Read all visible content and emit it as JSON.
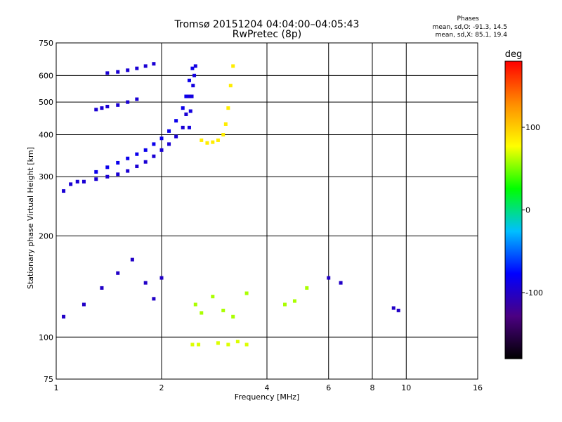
{
  "title": "Tromsø 20151204 04:04:00–04:05:43",
  "subtitle": "RwPretec (8p)",
  "phases": {
    "heading": "Phases",
    "o_line": "mean, sd,O: -91.3, 14.5",
    "x_line": "mean, sd,X: 85.1, 19.4"
  },
  "chart_data": {
    "type": "scatter",
    "xlabel": "Frequency [MHz]",
    "ylabel": "Stationary phase Virtual Height [km]",
    "x_scale": "log2",
    "y_scale": "log",
    "xlim": [
      1,
      16
    ],
    "ylim": [
      75,
      750
    ],
    "x_ticks": [
      1,
      2,
      4,
      6,
      8,
      10,
      16
    ],
    "y_ticks": [
      75,
      100,
      200,
      300,
      400,
      500,
      600,
      750
    ],
    "x_gridlines": [
      2,
      4,
      6,
      8,
      10
    ],
    "y_gridlines": [
      100,
      200,
      300,
      400,
      500,
      600
    ],
    "colorbar": {
      "label": "deg",
      "range": [
        -180,
        180
      ],
      "ticks": [
        100,
        0,
        -100
      ],
      "colors": [
        "#000000",
        "#4b0082",
        "#0000ff",
        "#00bfff",
        "#00ff00",
        "#ffff00",
        "#ff8c00",
        "#ff0000"
      ]
    },
    "series": [
      {
        "id": "o_trace_lower",
        "phase": -95,
        "x": [
          1.05,
          1.1,
          1.15,
          1.2,
          1.3,
          1.4,
          1.5,
          1.6,
          1.7,
          1.8,
          1.9,
          2.0,
          2.1,
          2.2,
          2.3,
          2.35,
          2.4
        ],
        "y": [
          272,
          285,
          290,
          290,
          295,
          300,
          305,
          312,
          322,
          332,
          345,
          360,
          375,
          395,
          420,
          460,
          520
        ]
      },
      {
        "id": "o_trace_upper",
        "phase": -85,
        "x": [
          1.3,
          1.4,
          1.5,
          1.6,
          1.7,
          1.8,
          1.9,
          2.0,
          2.1,
          2.2,
          2.3,
          2.35,
          2.4,
          2.45
        ],
        "y": [
          310,
          320,
          330,
          340,
          350,
          360,
          375,
          390,
          410,
          440,
          480,
          520,
          580,
          630
        ]
      },
      {
        "id": "o_vertical_2.4",
        "phase": -90,
        "x": [
          2.4,
          2.42,
          2.44,
          2.46,
          2.48,
          2.5
        ],
        "y": [
          420,
          470,
          520,
          560,
          600,
          640
        ]
      },
      {
        "id": "o_mid_arc",
        "phase": -95,
        "x": [
          1.3,
          1.35,
          1.4,
          1.5,
          1.6,
          1.7
        ],
        "y": [
          475,
          480,
          485,
          490,
          500,
          510
        ]
      },
      {
        "id": "o_top_arc",
        "phase": -95,
        "x": [
          1.4,
          1.5,
          1.6,
          1.7,
          1.8,
          1.9
        ],
        "y": [
          610,
          615,
          622,
          630,
          640,
          650
        ]
      },
      {
        "id": "x_trace",
        "phase": 85,
        "x": [
          2.6,
          2.7,
          2.8,
          2.9,
          3.0,
          3.05,
          3.1,
          3.15,
          3.2
        ],
        "y": [
          385,
          378,
          380,
          385,
          400,
          430,
          480,
          560,
          640
        ]
      },
      {
        "id": "o_low_cluster",
        "phase": -100,
        "x": [
          1.05,
          1.2,
          1.35,
          1.5,
          1.65,
          1.8,
          1.9,
          2.0
        ],
        "y": [
          115,
          125,
          140,
          155,
          170,
          145,
          130,
          150
        ]
      },
      {
        "id": "x_low_scatter",
        "phase": 60,
        "x": [
          2.5,
          2.6,
          2.8,
          3.0,
          3.2,
          3.5,
          4.5,
          4.8,
          5.2
        ],
        "y": [
          125,
          118,
          132,
          120,
          115,
          135,
          125,
          128,
          140
        ]
      },
      {
        "id": "x_low_band",
        "phase": 70,
        "x": [
          2.45,
          2.55,
          2.9,
          3.1,
          3.3,
          3.5
        ],
        "y": [
          95,
          95,
          96,
          95,
          97,
          95
        ]
      },
      {
        "id": "o_far_points",
        "phase": -100,
        "x": [
          6.0,
          6.5,
          9.2,
          9.5
        ],
        "y": [
          150,
          145,
          122,
          120
        ]
      }
    ]
  }
}
